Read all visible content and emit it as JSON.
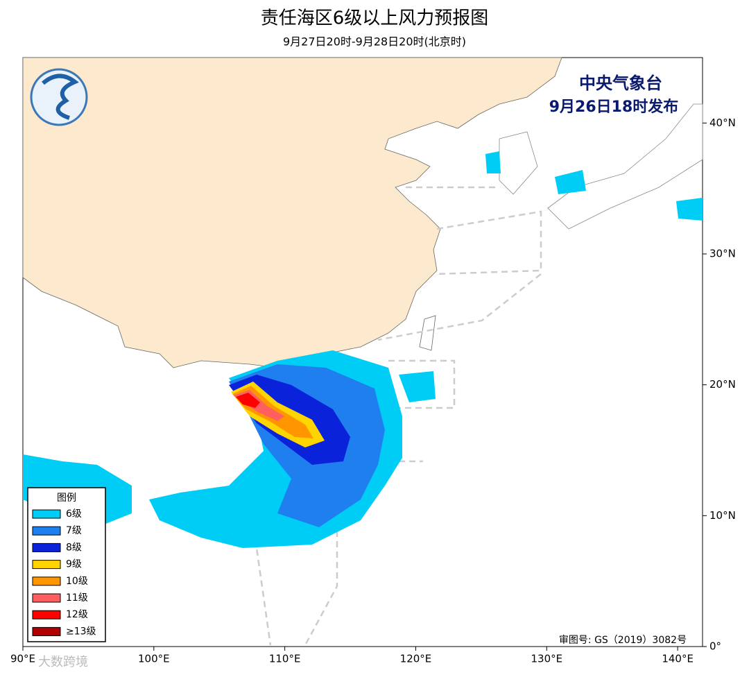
{
  "header": {
    "title": "责任海区6级以上风力预报图",
    "subtitle": "9月27日20时-9月28日20时(北京时)"
  },
  "issuer": {
    "agency": "中央气象台",
    "issued": "9月26日18时发布"
  },
  "map": {
    "lonlim": [
      90,
      141.9
    ],
    "latlim": [
      0,
      45
    ],
    "lon_ticks": [
      {
        "value": 90,
        "label": "90°E"
      },
      {
        "value": 100,
        "label": "100°E"
      },
      {
        "value": 110,
        "label": "110°E"
      },
      {
        "value": 120,
        "label": "120°E"
      },
      {
        "value": 130,
        "label": "130°E"
      },
      {
        "value": 140,
        "label": "140°E"
      }
    ],
    "lat_ticks": [
      {
        "value": 0,
        "label": "0°"
      },
      {
        "value": 10,
        "label": "10°N"
      },
      {
        "value": 20,
        "label": "20°N"
      },
      {
        "value": 30,
        "label": "30°N"
      },
      {
        "value": 40,
        "label": "40°N"
      }
    ]
  },
  "legend": {
    "title": "图例",
    "items": [
      {
        "label": "6级",
        "color": "#00cdf5"
      },
      {
        "label": "7级",
        "color": "#1f7fef"
      },
      {
        "label": "8级",
        "color": "#0a22d9"
      },
      {
        "label": "9级",
        "color": "#ffd500"
      },
      {
        "label": "10级",
        "color": "#ff9600"
      },
      {
        "label": "11级",
        "color": "#ff5f5f"
      },
      {
        "label": "12级",
        "color": "#ff0000"
      },
      {
        "label": "≥13级",
        "color": "#b00000"
      }
    ]
  },
  "footer": {
    "approval": "审图号: GS（2019）3082号",
    "watermark": "大数跨境"
  }
}
